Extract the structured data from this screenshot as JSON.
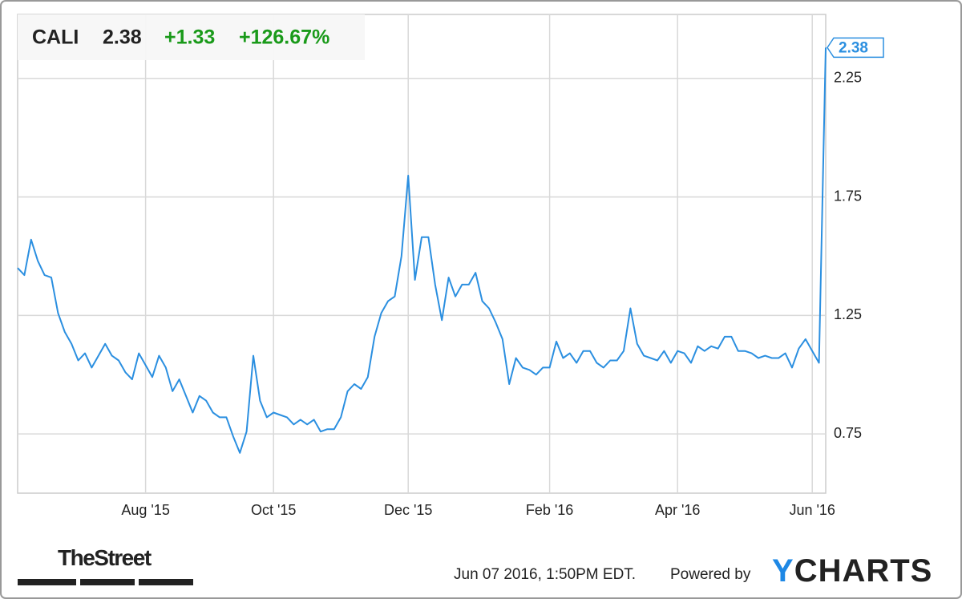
{
  "header": {
    "ticker": "CALI",
    "price": "2.38",
    "change": "+1.33",
    "change_percent": "+126.67%"
  },
  "footer": {
    "brand": "TheStreet",
    "timestamp": "Jun 07 2016, 1:50PM EDT.",
    "powered": "Powered by",
    "logo": "YCHARTS"
  },
  "chart_data": {
    "type": "line",
    "color": "#2b8fe0",
    "categories": [
      null,
      null,
      null,
      null,
      null,
      null,
      null,
      null,
      null,
      null,
      null,
      null,
      null,
      null,
      null,
      null,
      null,
      null,
      null,
      "Aug '15",
      null,
      null,
      null,
      null,
      null,
      null,
      null,
      null,
      null,
      null,
      null,
      null,
      null,
      null,
      null,
      null,
      null,
      null,
      "Oct '15",
      null,
      null,
      null,
      null,
      null,
      null,
      null,
      null,
      null,
      null,
      null,
      null,
      null,
      null,
      null,
      null,
      null,
      null,
      null,
      "Dec '15",
      null,
      null,
      null,
      null,
      null,
      null,
      null,
      null,
      null,
      null,
      null,
      null,
      null,
      null,
      null,
      null,
      null,
      null,
      null,
      null,
      "Feb '16",
      null,
      null,
      null,
      null,
      null,
      null,
      null,
      null,
      null,
      null,
      null,
      null,
      null,
      null,
      null,
      null,
      null,
      null,
      "Apr '16",
      null,
      null,
      null,
      null,
      null,
      null,
      null,
      null,
      null,
      null,
      null,
      null,
      null,
      null,
      null,
      null,
      null,
      null,
      null,
      "Jun '16",
      null,
      null
    ],
    "values": [
      1.45,
      1.42,
      1.57,
      1.48,
      1.42,
      1.41,
      1.26,
      1.18,
      1.13,
      1.06,
      1.09,
      1.03,
      1.08,
      1.13,
      1.08,
      1.06,
      1.01,
      0.98,
      1.09,
      1.04,
      0.99,
      1.08,
      1.03,
      0.93,
      0.98,
      0.91,
      0.84,
      0.91,
      0.89,
      0.84,
      0.82,
      0.82,
      0.74,
      0.67,
      0.76,
      1.08,
      0.89,
      0.82,
      0.84,
      0.83,
      0.82,
      0.79,
      0.81,
      0.79,
      0.81,
      0.76,
      0.77,
      0.77,
      0.82,
      0.93,
      0.96,
      0.94,
      0.99,
      1.16,
      1.26,
      1.31,
      1.33,
      1.5,
      1.84,
      1.4,
      1.58,
      1.58,
      1.38,
      1.23,
      1.41,
      1.33,
      1.38,
      1.38,
      1.43,
      1.31,
      1.28,
      1.22,
      1.15,
      0.96,
      1.07,
      1.03,
      1.02,
      1.0,
      1.03,
      1.03,
      1.14,
      1.07,
      1.09,
      1.05,
      1.1,
      1.1,
      1.05,
      1.03,
      1.06,
      1.06,
      1.1,
      1.28,
      1.13,
      1.08,
      1.07,
      1.06,
      1.1,
      1.05,
      1.1,
      1.09,
      1.05,
      1.12,
      1.1,
      1.12,
      1.11,
      1.16,
      1.16,
      1.1,
      1.1,
      1.09,
      1.07,
      1.08,
      1.07,
      1.07,
      1.09,
      1.03,
      1.11,
      1.15,
      1.1,
      1.05,
      2.38
    ],
    "ylim": [
      0.5,
      2.52
    ],
    "yticks": [
      0.75,
      1.25,
      1.75,
      2.25
    ],
    "grid": true
  }
}
